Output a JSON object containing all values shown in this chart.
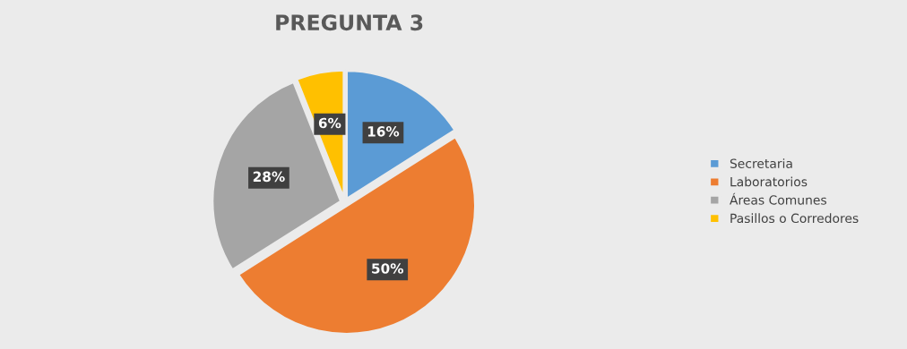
{
  "chart_data": {
    "type": "pie",
    "title": "PREGUNTA 3",
    "categories": [
      "Secretaria",
      "Laboratorios",
      "Áreas Comunes",
      "Pasillos o Corredores"
    ],
    "values": [
      16,
      50,
      28,
      6
    ],
    "colors": [
      "#5b9bd5",
      "#ed7d31",
      "#a5a5a5",
      "#ffc000"
    ],
    "value_labels": [
      "16%",
      "50%",
      "28%",
      "6%"
    ],
    "legend": "right"
  }
}
